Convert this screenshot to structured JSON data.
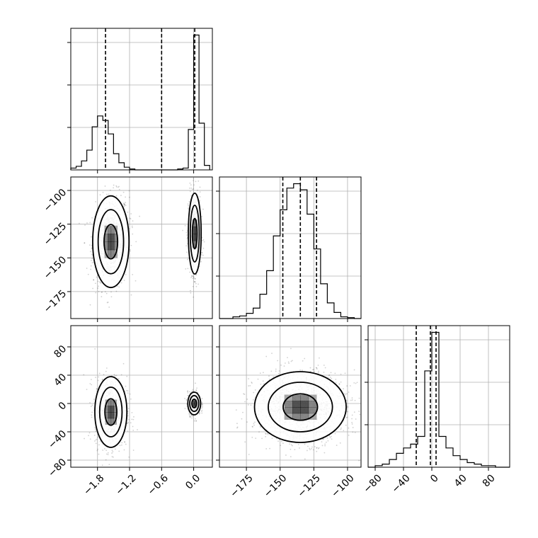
{
  "chart_data": {
    "type": "corner",
    "title": "",
    "parameters": [
      {
        "id": "p1",
        "label": "",
        "range": [
          -2.3,
          0.35
        ],
        "ticks": [
          -1.8,
          -1.2,
          -0.6,
          0.0
        ],
        "tick_labels": [
          "−1.8",
          "−1.2",
          "−0.6",
          "0.0"
        ]
      },
      {
        "id": "p2",
        "label": "",
        "range": [
          -195,
          -90
        ],
        "ticks": [
          -175,
          -150,
          -125,
          -100
        ],
        "tick_labels": [
          "−175",
          "−150",
          "−125",
          "−100"
        ]
      },
      {
        "id": "p3",
        "label": "",
        "range": [
          -90,
          110
        ],
        "ticks": [
          -80,
          -40,
          0,
          40,
          80
        ],
        "tick_labels": [
          "−80",
          "−40",
          "0",
          "40",
          "80"
        ]
      }
    ],
    "histograms": [
      {
        "param": "p1",
        "bin_edges": [
          -2.3,
          -2.2,
          -2.1,
          -2.0,
          -1.9,
          -1.8,
          -1.7,
          -1.6,
          -1.5,
          -1.4,
          -1.3,
          -1.2,
          -1.1,
          -1.0,
          -0.9,
          -0.8,
          -0.7,
          -0.6,
          -0.5,
          -0.4,
          -0.3,
          -0.2,
          -0.1,
          0.0,
          0.1,
          0.2,
          0.3
        ],
        "counts": [
          2,
          4,
          10,
          22,
          48,
          60,
          55,
          40,
          18,
          8,
          3,
          1,
          0,
          0,
          0,
          0,
          0,
          0,
          0,
          0,
          1,
          2,
          45,
          150,
          52,
          5
        ],
        "quantiles": [
          -1.65,
          -0.6,
          0.02
        ]
      },
      {
        "param": "p2",
        "bin_edges": [
          -195,
          -190,
          -185,
          -180,
          -175,
          -170,
          -165,
          -160,
          -155,
          -150,
          -145,
          -140,
          -135,
          -130,
          -125,
          -120,
          -115,
          -110,
          -105,
          -100,
          -95,
          -90
        ],
        "counts": [
          0,
          0,
          2,
          3,
          6,
          12,
          28,
          55,
          95,
          125,
          150,
          155,
          148,
          120,
          80,
          40,
          18,
          7,
          2,
          1,
          0
        ],
        "quantiles": [
          -148,
          -135,
          -123
        ]
      },
      {
        "param": "p3",
        "bin_edges": [
          -90,
          -80,
          -70,
          -60,
          -50,
          -40,
          -30,
          -20,
          -10,
          0,
          10,
          20,
          30,
          40,
          50,
          60,
          70,
          80,
          90,
          100,
          110
        ],
        "counts": [
          0,
          2,
          4,
          10,
          18,
          25,
          30,
          40,
          125,
          175,
          40,
          25,
          15,
          10,
          6,
          4,
          2,
          2,
          0,
          0
        ],
        "quantiles": [
          -22,
          -2,
          6
        ]
      }
    ],
    "scatter_panels": [
      {
        "x": "p1",
        "y": "p2",
        "modes": [
          {
            "cx": -1.55,
            "cy": -138,
            "sx": 0.17,
            "sy": 17,
            "rho": 0.1,
            "weight": 0.6
          },
          {
            "cx": 0.02,
            "cy": -132,
            "sx": 0.06,
            "sy": 15,
            "rho": 0.0,
            "weight": 0.4
          }
        ]
      },
      {
        "x": "p1",
        "y": "p3",
        "modes": [
          {
            "cx": -1.55,
            "cy": -12,
            "sx": 0.15,
            "sy": 25,
            "rho": 0.0,
            "weight": 0.6
          },
          {
            "x_note": "",
            "cx": 0.01,
            "cy": 0,
            "sx": 0.06,
            "sy": 8,
            "rho": 0.0,
            "weight": 0.4
          }
        ]
      },
      {
        "x": "p2",
        "y": "p3",
        "modes": [
          {
            "cx": -135,
            "cy": -5,
            "sx": 17,
            "sy": 25,
            "rho": 0.0,
            "weight": 1.0
          }
        ]
      }
    ],
    "grid": true,
    "point_color": "#000000",
    "line_color": "#000000",
    "grid_color": "#b0b0b0"
  }
}
